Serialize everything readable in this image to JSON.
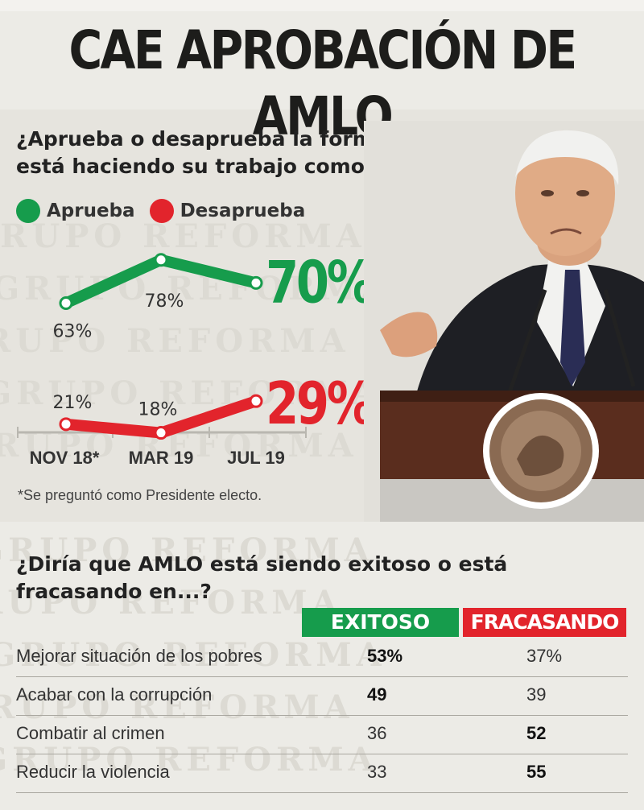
{
  "title": "CAE APROBACIÓN DE AMLO",
  "question1": "¿Aprueba o desaprueba la forma como AMLO está haciendo su trabajo como Presidente?",
  "footnote": "*Se preguntó como Presidente electo.",
  "watermark_text": "GRUPO REFORMA",
  "colors": {
    "approve": "#169c4c",
    "disapprove": "#e2242c"
  },
  "chart_data": {
    "type": "line",
    "categories": [
      "NOV 18*",
      "MAR 19",
      "JUL 19"
    ],
    "series": [
      {
        "name": "Aprueba",
        "values": [
          63,
          78,
          70
        ],
        "labels": [
          "63%",
          "78%",
          "70%"
        ]
      },
      {
        "name": "Desaprueba",
        "values": [
          21,
          18,
          29
        ],
        "labels": [
          "21%",
          "18%",
          "29%"
        ]
      }
    ],
    "ylim": [
      0,
      100
    ],
    "grid": false,
    "legend": "top-left"
  },
  "question2": "¿Diría que AMLO está siendo exitoso o está fracasando en...?",
  "table": {
    "headers": [
      "EXITOSO",
      "FRACASANDO"
    ],
    "rows": [
      {
        "label": "Mejorar situación de los pobres",
        "exitoso": "53%",
        "fracasando": "37%"
      },
      {
        "label": "Acabar con la corrupción",
        "exitoso": "49",
        "fracasando": "39"
      },
      {
        "label": "Combatir al crimen",
        "exitoso": "36",
        "fracasando": "52"
      },
      {
        "label": "Reducir la violencia",
        "exitoso": "33",
        "fracasando": "55"
      }
    ]
  }
}
